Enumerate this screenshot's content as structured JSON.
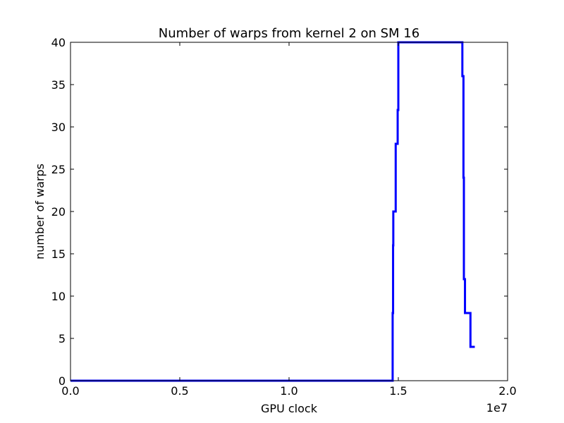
{
  "chart_data": {
    "type": "line",
    "title": "Number of warps from kernel 2 on SM 16",
    "xlabel": "GPU clock",
    "ylabel": "number of warps",
    "x_offset_label": "1e7",
    "xlim": [
      0.0,
      2.0
    ],
    "ylim": [
      0,
      40
    ],
    "x_ticks": [
      0.0,
      0.5,
      1.0,
      1.5,
      2.0
    ],
    "x_tick_labels": [
      "0.0",
      "0.5",
      "1.0",
      "1.5",
      "2.0"
    ],
    "y_ticks": [
      0,
      5,
      10,
      15,
      20,
      25,
      30,
      35,
      40
    ],
    "y_tick_labels": [
      "0",
      "5",
      "10",
      "15",
      "20",
      "25",
      "30",
      "35",
      "40"
    ],
    "grid": false,
    "line_color": "#0000ff",
    "series": [
      {
        "x": [
          0.0,
          1.474,
          1.474,
          1.476,
          1.476,
          1.477,
          1.477,
          1.488,
          1.488,
          1.497,
          1.497,
          1.5,
          1.5,
          1.793,
          1.793,
          1.798,
          1.798,
          1.8,
          1.8,
          1.805,
          1.805,
          1.83,
          1.83,
          1.85
        ],
        "y": [
          0,
          0,
          8,
          8,
          16,
          16,
          20,
          20,
          28,
          28,
          32,
          32,
          40,
          40,
          36,
          36,
          24,
          24,
          12,
          12,
          8,
          8,
          4,
          4
        ]
      }
    ]
  }
}
